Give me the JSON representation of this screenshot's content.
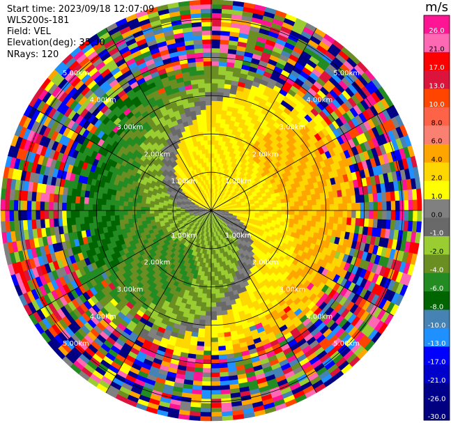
{
  "header": {
    "start_time": "Start time: 2023/09/18 12:07:09",
    "instrument": "WLS200s-181",
    "field": "Field: VEL",
    "elevation": "Elevation(deg): 35.30",
    "nrays": "NRays: 120"
  },
  "chart_data": {
    "type": "heatmap",
    "projection": "polar-ppi",
    "field": "VEL",
    "nrays": 120,
    "range_rings_km": [
      1.0,
      2.0,
      3.0,
      4.0,
      5.0
    ],
    "range_ring_labels": [
      "1.00km",
      "2.00km",
      "3.00km",
      "4.00km",
      "5.00km"
    ],
    "max_range_km": 5.5,
    "grid": true,
    "colorbar": {
      "title": "m/s",
      "ticks": [
        "26.0",
        "21.0",
        "17.0",
        "13.0",
        "10.0",
        "8.0",
        "6.0",
        "4.0",
        "2.0",
        "1.0",
        "0.0",
        "-1.0",
        "-2.0",
        "-4.0",
        "-6.0",
        "-8.0",
        "-10.0",
        "-13.0",
        "-17.0",
        "-21.0",
        "-26.0",
        "-30.0"
      ],
      "colors": [
        "#ff1493",
        "#ff69b4",
        "#ff0000",
        "#dc143c",
        "#ff4500",
        "#ff6347",
        "#fa8072",
        "#ffa500",
        "#ffd700",
        "#ffff00",
        "#808080",
        "#696969",
        "#9acd32",
        "#6b8e23",
        "#228b22",
        "#006400",
        "#4682b4",
        "#1e90ff",
        "#0000ff",
        "#0000cd",
        "#00008b",
        "#000080"
      ]
    }
  }
}
